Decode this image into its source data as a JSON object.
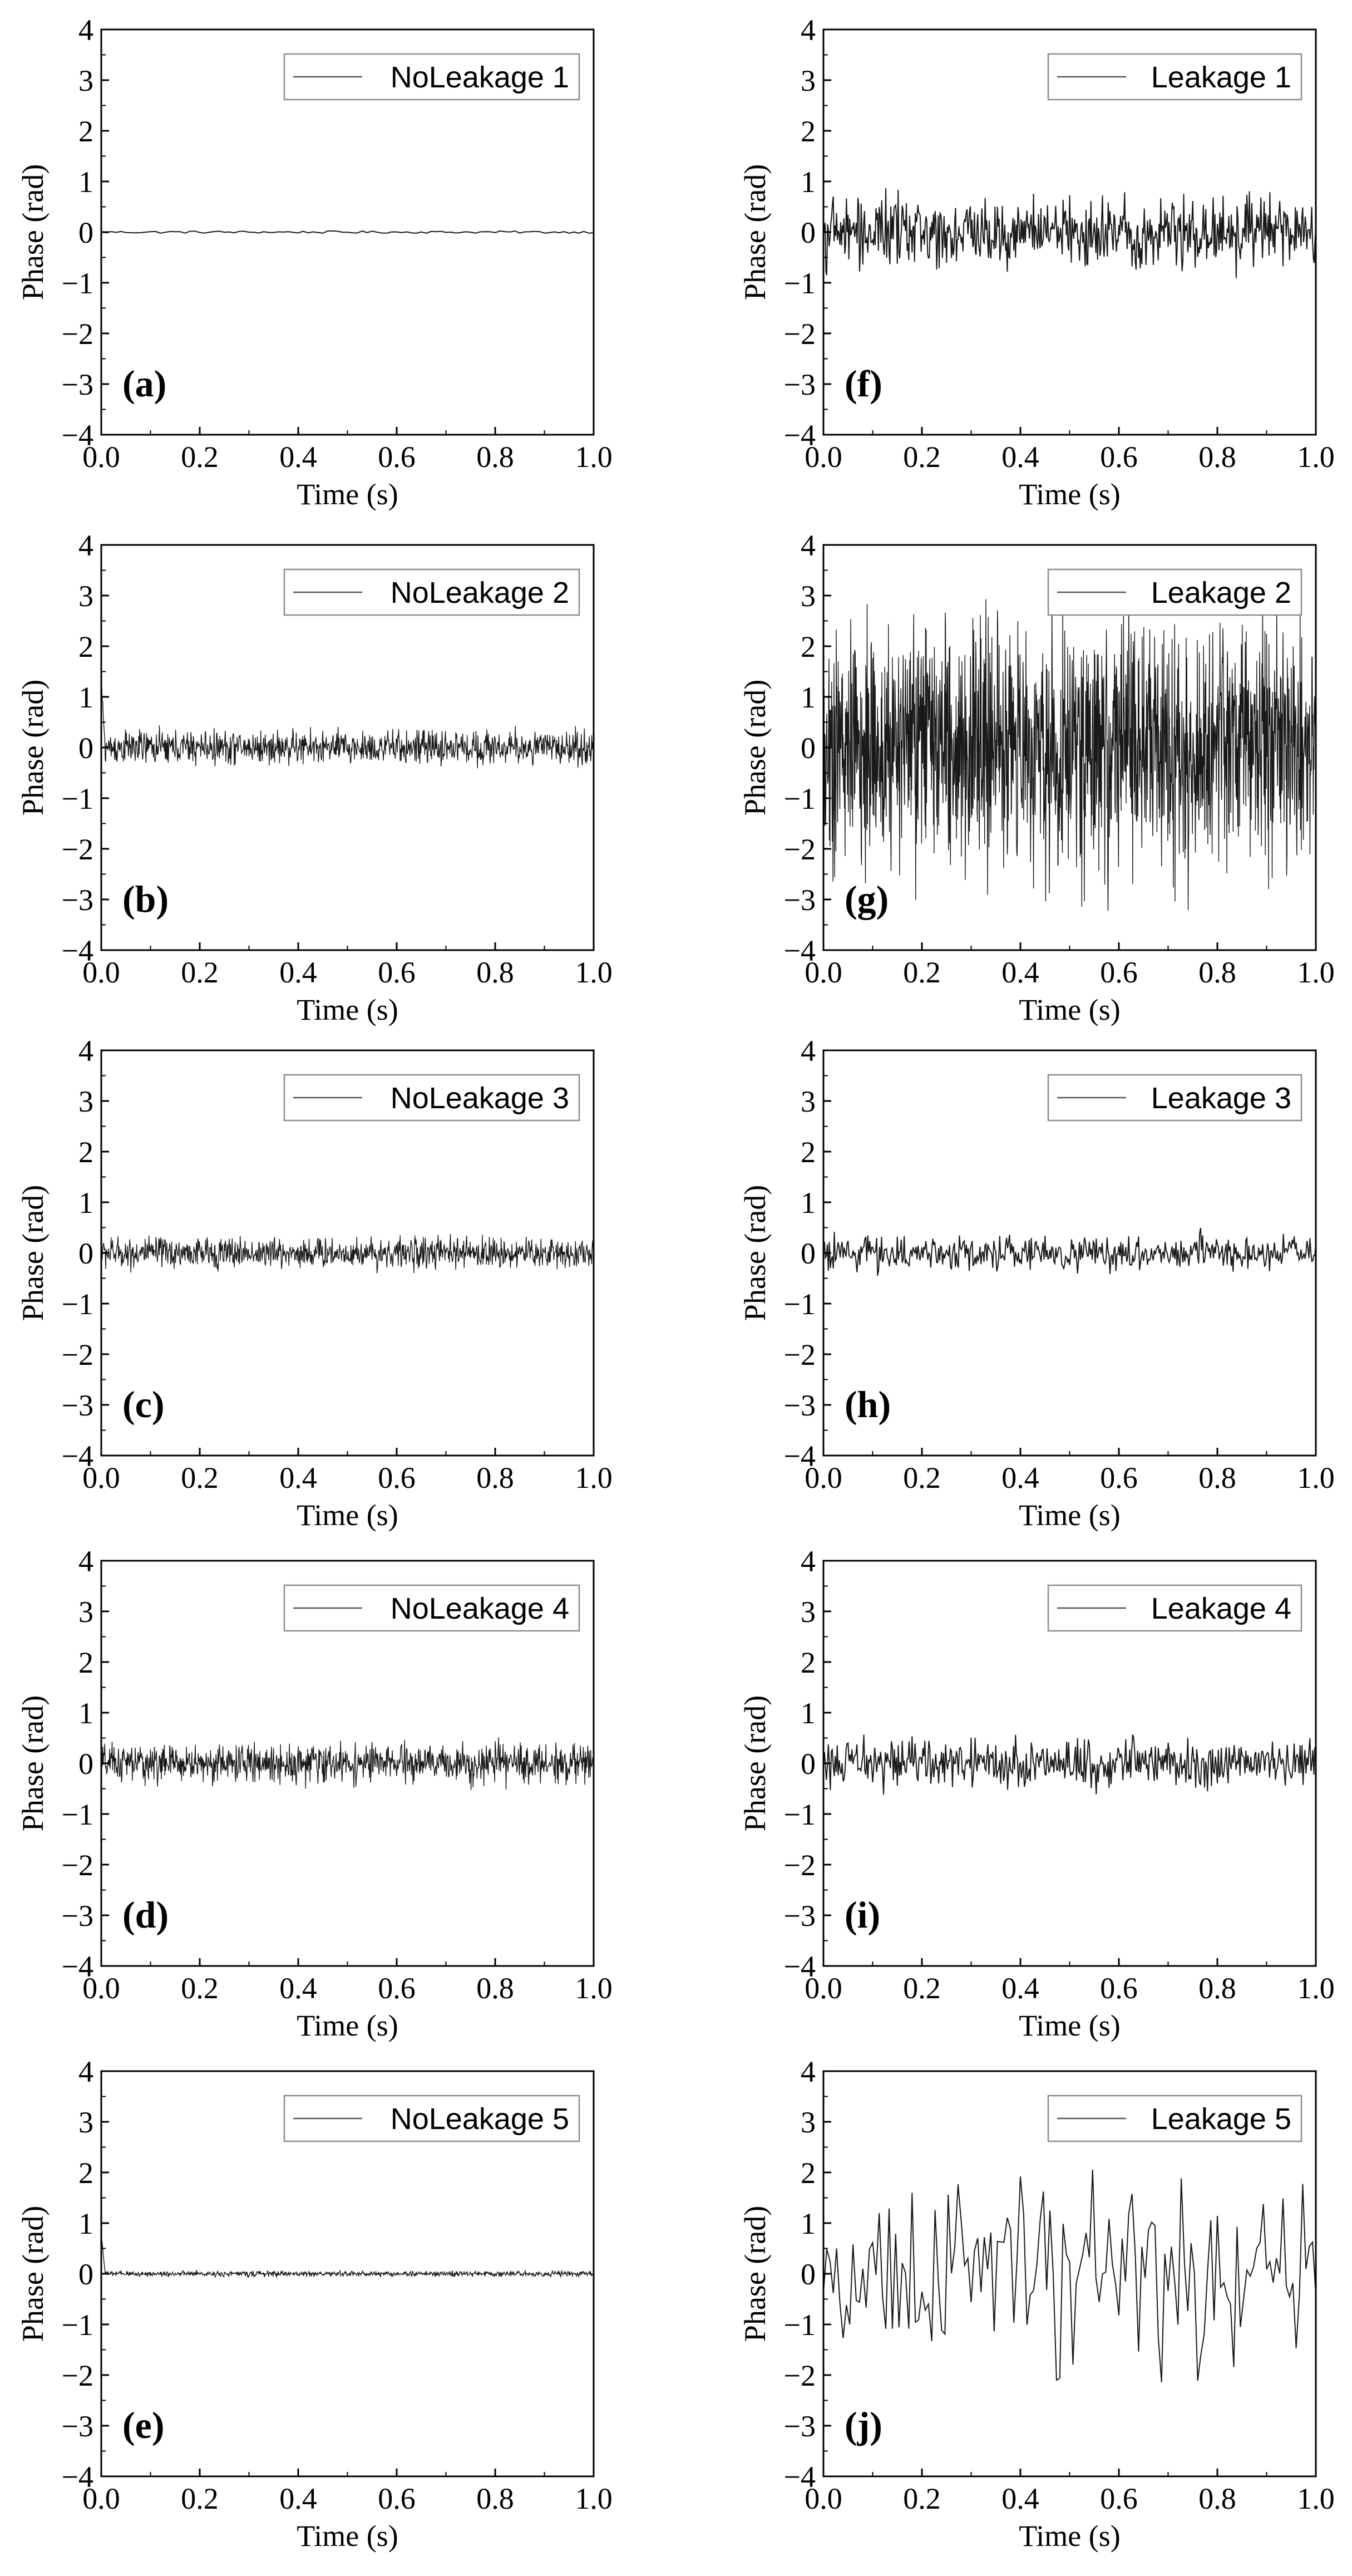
{
  "figure": {
    "colors": {
      "trace": "#000000",
      "axis": "#000000",
      "legend_border": "#8c8c8c",
      "background": "#ffffff"
    }
  },
  "chart_data": [
    {
      "type": "line",
      "panel_label": "(a)",
      "xlabel": "Time (s)",
      "ylabel": "Phase (rad)",
      "xlim": [
        0,
        1
      ],
      "ylim": [
        -4,
        4
      ],
      "xticks": [
        "0.0",
        "0.2",
        "0.4",
        "0.6",
        "0.8",
        "1.0"
      ],
      "yticks": [
        "4",
        "3",
        "2",
        "1",
        "0",
        "-1",
        "-2",
        "-3",
        "-4"
      ],
      "legend": "NoLeakage 1",
      "legend_position": "top-right",
      "grid": false,
      "series": [
        {
          "name": "NoLeakage 1",
          "kind": "oscillation",
          "amplitude": 0.15,
          "period": 0.02,
          "start_spike": 0,
          "noise_samples": 100
        }
      ]
    },
    {
      "type": "line",
      "panel_label": "(b)",
      "xlabel": "Time (s)",
      "ylabel": "Phase (rad)",
      "xlim": [
        0,
        1
      ],
      "ylim": [
        -4,
        4
      ],
      "xticks": [
        "0.0",
        "0.2",
        "0.4",
        "0.6",
        "0.8",
        "1.0"
      ],
      "yticks": [
        "4",
        "3",
        "2",
        "1",
        "0",
        "-1",
        "-2",
        "-3",
        "-4"
      ],
      "legend": "NoLeakage 2",
      "legend_position": "top-right",
      "grid": false,
      "series": [
        {
          "name": "NoLeakage 2",
          "kind": "noise",
          "amplitude": 0.5,
          "period": 0,
          "start_spike": 1.3,
          "noise_samples": 1000
        }
      ]
    },
    {
      "type": "line",
      "panel_label": "(c)",
      "xlabel": "Time (s)",
      "ylabel": "Phase (rad)",
      "xlim": [
        0,
        1
      ],
      "ylim": [
        -4,
        4
      ],
      "xticks": [
        "0.0",
        "0.2",
        "0.4",
        "0.6",
        "0.8",
        "1.0"
      ],
      "yticks": [
        "4",
        "3",
        "2",
        "1",
        "0",
        "-1",
        "-2",
        "-3",
        "-4"
      ],
      "legend": "NoLeakage 3",
      "legend_position": "top-right",
      "grid": false,
      "series": [
        {
          "name": "NoLeakage 3",
          "kind": "noise",
          "amplitude": 0.45,
          "period": 0,
          "start_spike": 0,
          "noise_samples": 1000
        }
      ]
    },
    {
      "type": "line",
      "panel_label": "(d)",
      "xlabel": "Time (s)",
      "ylabel": "Phase (rad)",
      "xlim": [
        0,
        1
      ],
      "ylim": [
        -4,
        4
      ],
      "xticks": [
        "0.0",
        "0.2",
        "0.4",
        "0.6",
        "0.8",
        "1.0"
      ],
      "yticks": [
        "4",
        "3",
        "2",
        "1",
        "0",
        "-1",
        "-2",
        "-3",
        "-4"
      ],
      "legend": "NoLeakage 4",
      "legend_position": "top-right",
      "grid": false,
      "series": [
        {
          "name": "NoLeakage 4",
          "kind": "noise",
          "amplitude": 0.55,
          "period": 0,
          "start_spike": 0,
          "noise_samples": 1000
        }
      ]
    },
    {
      "type": "line",
      "panel_label": "(e)",
      "xlabel": "Time (s)",
      "ylabel": "Phase (rad)",
      "xlim": [
        0,
        1
      ],
      "ylim": [
        -4,
        4
      ],
      "xticks": [
        "0.0",
        "0.2",
        "0.4",
        "0.6",
        "0.8",
        "1.0"
      ],
      "yticks": [
        "4",
        "3",
        "2",
        "1",
        "0",
        "-1",
        "-2",
        "-3",
        "-4"
      ],
      "legend": "NoLeakage 5",
      "legend_position": "top-right",
      "grid": false,
      "series": [
        {
          "name": "NoLeakage 5",
          "kind": "noise",
          "amplitude": 0.08,
          "period": 0,
          "start_spike": 0.8,
          "noise_samples": 1000
        }
      ]
    },
    {
      "type": "line",
      "panel_label": "(f)",
      "xlabel": "Time (s)",
      "ylabel": "Phase (rad)",
      "xlim": [
        0,
        1
      ],
      "ylim": [
        -4,
        4
      ],
      "xticks": [
        "0.0",
        "0.2",
        "0.4",
        "0.6",
        "0.8",
        "1.0"
      ],
      "yticks": [
        "4",
        "3",
        "2",
        "1",
        "0",
        "-1",
        "-2",
        "-3",
        "-4"
      ],
      "legend": "Leakage 1",
      "legend_position": "top-right",
      "grid": false,
      "series": [
        {
          "name": "Leakage 1",
          "kind": "noise",
          "amplitude": 1.0,
          "period": 0,
          "start_spike": 0,
          "noise_samples": 600
        }
      ]
    },
    {
      "type": "line",
      "panel_label": "(g)",
      "xlabel": "Time (s)",
      "ylabel": "Phase (rad)",
      "xlim": [
        0,
        1
      ],
      "ylim": [
        -4,
        4
      ],
      "xticks": [
        "0.0",
        "0.2",
        "0.4",
        "0.6",
        "0.8",
        "1.0"
      ],
      "yticks": [
        "4",
        "3",
        "2",
        "1",
        "0",
        "-1",
        "-2",
        "-3",
        "-4"
      ],
      "legend": "Leakage 2",
      "legend_position": "top-right",
      "grid": false,
      "series": [
        {
          "name": "Leakage 2",
          "kind": "noise",
          "amplitude": 3.5,
          "period": 0,
          "start_spike": 0,
          "noise_samples": 1500
        }
      ]
    },
    {
      "type": "line",
      "panel_label": "(h)",
      "xlabel": "Time (s)",
      "ylabel": "Phase (rad)",
      "xlim": [
        0,
        1
      ],
      "ylim": [
        -4,
        4
      ],
      "xticks": [
        "0.0",
        "0.2",
        "0.4",
        "0.6",
        "0.8",
        "1.0"
      ],
      "yticks": [
        "4",
        "3",
        "2",
        "1",
        "0",
        "-1",
        "-2",
        "-3",
        "-4"
      ],
      "legend": "Leakage 3",
      "legend_position": "top-right",
      "grid": false,
      "series": [
        {
          "name": "Leakage 3",
          "kind": "noise",
          "amplitude": 0.5,
          "period": 0,
          "start_spike": 0,
          "noise_samples": 500
        }
      ]
    },
    {
      "type": "line",
      "panel_label": "(i)",
      "xlabel": "Time (s)",
      "ylabel": "Phase (rad)",
      "xlim": [
        0,
        1
      ],
      "ylim": [
        -4,
        4
      ],
      "xticks": [
        "0.0",
        "0.2",
        "0.4",
        "0.6",
        "0.8",
        "1.0"
      ],
      "yticks": [
        "4",
        "3",
        "2",
        "1",
        "0",
        "-1",
        "-2",
        "-3",
        "-4"
      ],
      "legend": "Leakage 4",
      "legend_position": "top-right",
      "grid": false,
      "series": [
        {
          "name": "Leakage 4",
          "kind": "noise",
          "amplitude": 0.7,
          "period": 0,
          "start_spike": 0,
          "noise_samples": 500
        }
      ]
    },
    {
      "type": "line",
      "panel_label": "(j)",
      "xlabel": "Time (s)",
      "ylabel": "Phase (rad)",
      "xlim": [
        0,
        1
      ],
      "ylim": [
        -4,
        4
      ],
      "xticks": [
        "0.0",
        "0.2",
        "0.4",
        "0.6",
        "0.8",
        "1.0"
      ],
      "yticks": [
        "4",
        "3",
        "2",
        "1",
        "0",
        "-1",
        "-2",
        "-3",
        "-4"
      ],
      "legend": "Leakage 5",
      "legend_position": "top-right",
      "grid": false,
      "series": [
        {
          "name": "Leakage 5",
          "kind": "noise",
          "amplitude": 2.5,
          "period": 0,
          "start_spike": 0,
          "noise_samples": 150
        }
      ]
    }
  ]
}
